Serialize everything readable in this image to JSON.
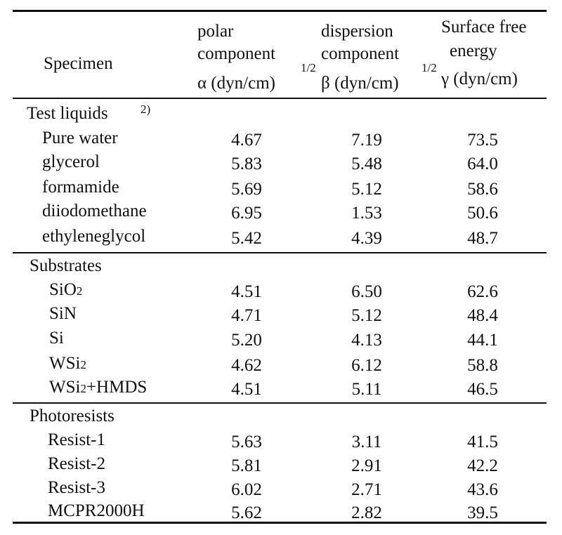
{
  "header": {
    "specimen": "Specimen",
    "polar": {
      "line1": "polar",
      "line2": "component",
      "sym": "α (dyn/cm)",
      "exp": "1/2"
    },
    "dispersion": {
      "line1": "dispersion",
      "line2": "component",
      "sym": "β  (dyn/cm)",
      "exp": "1/2"
    },
    "surface": {
      "line1": "Surface free",
      "line2": "energy",
      "sym": "γ (dyn/cm)"
    }
  },
  "sections": [
    {
      "title": "Test liquids",
      "note": "2)",
      "rows": [
        {
          "name": "Pure water",
          "alpha": "4.67",
          "beta": "7.19",
          "gamma": "73.5"
        },
        {
          "name": "glycerol",
          "alpha": "5.83",
          "beta": "5.48",
          "gamma": "64.0"
        },
        {
          "name": "formamide",
          "alpha": "5.69",
          "beta": "5.12",
          "gamma": "58.6"
        },
        {
          "name": "diiodomethane",
          "alpha": "6.95",
          "beta": "1.53",
          "gamma": "50.6"
        },
        {
          "name": "ethyleneglycol",
          "alpha": "5.42",
          "beta": "4.39",
          "gamma": "48.7"
        }
      ]
    },
    {
      "title": "Substrates",
      "rows": [
        {
          "name": "SiO",
          "sub": "2",
          "alpha": "4.51",
          "beta": "6.50",
          "gamma": "62.6"
        },
        {
          "name": "SiN",
          "alpha": "4.71",
          "beta": "5.12",
          "gamma": "48.4"
        },
        {
          "name": "Si",
          "alpha": "5.20",
          "beta": "4.13",
          "gamma": "44.1"
        },
        {
          "name": "WSi",
          "sub": "2",
          "alpha": "4.62",
          "beta": "6.12",
          "gamma": "58.8"
        },
        {
          "name": "WSi",
          "sub": "2",
          "suffix": "+HMDS",
          "alpha": "4.51",
          "beta": "5.11",
          "gamma": "46.5"
        }
      ]
    },
    {
      "title": "Photoresists",
      "rows": [
        {
          "name": "Resist-1",
          "alpha": "5.63",
          "beta": "3.11",
          "gamma": "41.5"
        },
        {
          "name": "Resist-2",
          "alpha": "5.81",
          "beta": "2.91",
          "gamma": "42.2"
        },
        {
          "name": "Resist-3",
          "alpha": "6.02",
          "beta": "2.71",
          "gamma": "43.6"
        },
        {
          "name": "MCPR2000H",
          "alpha": "5.62",
          "beta": "2.82",
          "gamma": "39.5"
        }
      ]
    }
  ]
}
